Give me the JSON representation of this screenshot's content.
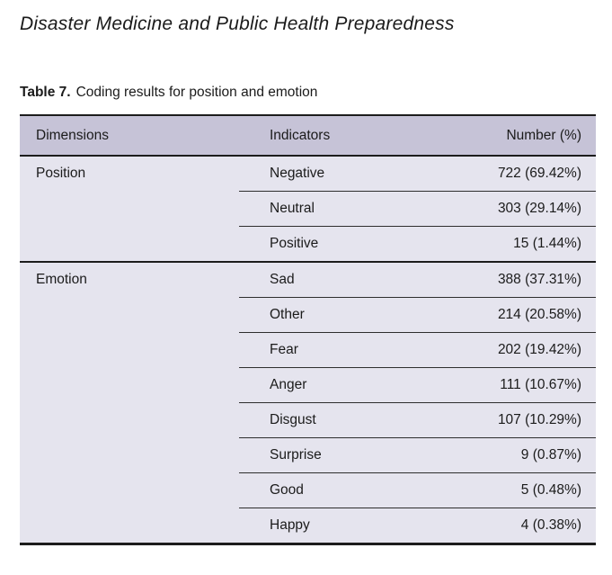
{
  "page": {
    "journal_title": "Disaster Medicine and Public Health Preparedness",
    "caption_label": "Table 7.",
    "caption_text": "Coding results for position and emotion"
  },
  "table": {
    "columns": [
      "Dimensions",
      "Indicators",
      "Number (%)"
    ],
    "groups": [
      {
        "dimension": "Position",
        "rows": [
          {
            "indicator": "Negative",
            "number": "722 (69.42%)"
          },
          {
            "indicator": "Neutral",
            "number": "303 (29.14%)"
          },
          {
            "indicator": "Positive",
            "number": "15 (1.44%)"
          }
        ]
      },
      {
        "dimension": "Emotion",
        "rows": [
          {
            "indicator": "Sad",
            "number": "388 (37.31%)"
          },
          {
            "indicator": "Other",
            "number": "214 (20.58%)"
          },
          {
            "indicator": "Fear",
            "number": "202 (19.42%)"
          },
          {
            "indicator": "Anger",
            "number": "111 (10.67%)"
          },
          {
            "indicator": "Disgust",
            "number": "107 (10.29%)"
          },
          {
            "indicator": "Surprise",
            "number": "9 (0.87%)"
          },
          {
            "indicator": "Good",
            "number": "5 (0.48%)"
          },
          {
            "indicator": "Happy",
            "number": "4 (0.38%)"
          }
        ]
      }
    ]
  },
  "colors": {
    "header_bg": "#c6c3d7",
    "body_bg": "#e5e4ee",
    "rule": "#1c1c1c",
    "text": "#1b1b1b"
  }
}
